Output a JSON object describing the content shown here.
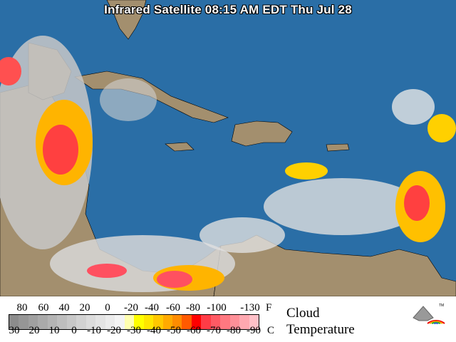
{
  "title": "Infrared Satellite 08:15 AM EDT Thu Jul 28",
  "colors": {
    "ocean": "#2a6ea6",
    "land": "#a38f6e",
    "border": "#000000"
  },
  "legend": {
    "fahrenheit_ticks": [
      "80",
      "60",
      "40",
      "20",
      "0",
      "-20",
      "-40",
      "-60",
      "-80",
      "-100",
      "-130"
    ],
    "fahrenheit_unit": "F",
    "celsius_ticks": [
      "30",
      "20",
      "10",
      "0",
      "-10",
      "-20",
      "-30",
      "-40",
      "-50",
      "-60",
      "-70",
      "-80",
      "-90"
    ],
    "celsius_unit": "C",
    "label_line1": "Cloud",
    "label_line2": "Temperature",
    "scale_colors": [
      "#8c8c8c",
      "#969696",
      "#a0a0a0",
      "#aaaaaa",
      "#b4b4b4",
      "#bebebe",
      "#c8c8c8",
      "#d2d2d2",
      "#dcdcdc",
      "#e4e4e4",
      "#ececec",
      "#f4f4f4",
      "#ffffb0",
      "#ffff00",
      "#ffe600",
      "#ffc800",
      "#ffaa00",
      "#ff8c00",
      "#ff5a00",
      "#ff0000",
      "#ff3c46",
      "#ff5a64",
      "#ff7880",
      "#ff9098",
      "#ffa8b0",
      "#ffc0c8"
    ],
    "logo": "weather-underground-tm-logo"
  }
}
